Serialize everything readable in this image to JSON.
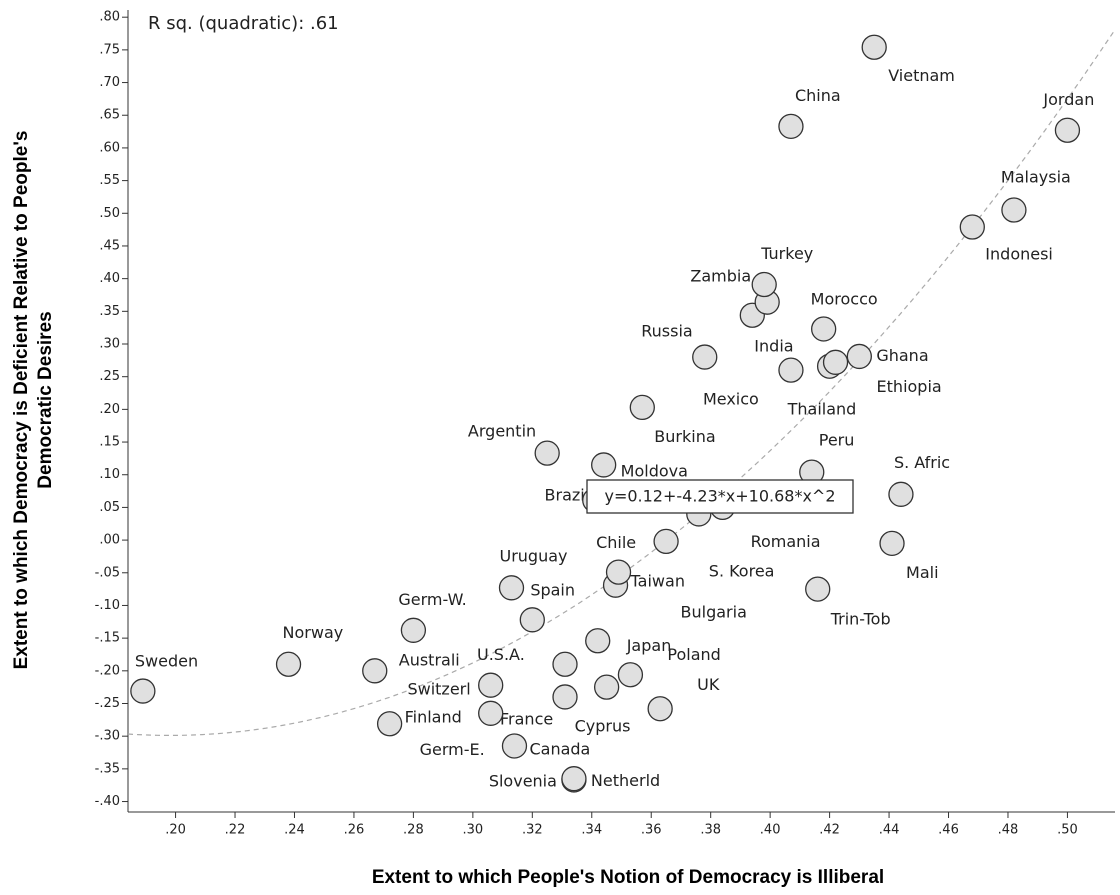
{
  "chart_data": {
    "type": "scatter",
    "annotation": "R sq. (quadratic):  .61",
    "xlabel": "Extent to which People's Notion of Democracy is Illiberal",
    "ylabel": [
      "Extent to which Democracy is Deficient Relative to People's",
      "Democratic Desires"
    ],
    "fit_label": "y=0.12+-4.23*x+10.68*x^2",
    "fit_coefficients": [
      0.12,
      -4.23,
      10.68
    ],
    "fit_color": "#aaaaaa",
    "color": "#e0e0e0",
    "xlim": [
      0.184,
      0.516
    ],
    "ylim": [
      -0.416,
      0.811
    ],
    "xticks": [
      {
        "value": 0.2,
        "label": ".20"
      },
      {
        "value": 0.22,
        "label": ".22"
      },
      {
        "value": 0.24,
        "label": ".24"
      },
      {
        "value": 0.26,
        "label": ".26"
      },
      {
        "value": 0.28,
        "label": ".28"
      },
      {
        "value": 0.3,
        "label": ".30"
      },
      {
        "value": 0.32,
        "label": ".32"
      },
      {
        "value": 0.34,
        "label": ".34"
      },
      {
        "value": 0.36,
        "label": ".36"
      },
      {
        "value": 0.38,
        "label": ".38"
      },
      {
        "value": 0.4,
        "label": ".40"
      },
      {
        "value": 0.42,
        "label": ".42"
      },
      {
        "value": 0.44,
        "label": ".44"
      },
      {
        "value": 0.46,
        "label": ".46"
      },
      {
        "value": 0.48,
        "label": ".48"
      },
      {
        "value": 0.5,
        "label": ".50"
      }
    ],
    "yticks": [
      {
        "value": 0.8,
        "label": ".80"
      },
      {
        "value": 0.75,
        "label": ".75"
      },
      {
        "value": 0.7,
        "label": ".70"
      },
      {
        "value": 0.65,
        "label": ".65"
      },
      {
        "value": 0.6,
        "label": ".60"
      },
      {
        "value": 0.55,
        "label": ".55"
      },
      {
        "value": 0.5,
        "label": ".50"
      },
      {
        "value": 0.45,
        "label": ".45"
      },
      {
        "value": 0.4,
        "label": ".40"
      },
      {
        "value": 0.35,
        "label": ".35"
      },
      {
        "value": 0.3,
        "label": ".30"
      },
      {
        "value": 0.25,
        "label": ".25"
      },
      {
        "value": 0.2,
        "label": ".20"
      },
      {
        "value": 0.15,
        "label": ".15"
      },
      {
        "value": 0.1,
        "label": ".10"
      },
      {
        "value": 0.05,
        "label": ".05"
      },
      {
        "value": 0,
        "label": ".00"
      },
      {
        "value": -0.05,
        "label": "-.05"
      },
      {
        "value": -0.1,
        "label": "-.10"
      },
      {
        "value": -0.15,
        "label": "-.15"
      },
      {
        "value": -0.2,
        "label": "-.20"
      },
      {
        "value": -0.25,
        "label": "-.25"
      },
      {
        "value": -0.3,
        "label": "-.30"
      },
      {
        "value": -0.35,
        "label": "-.35"
      },
      {
        "value": -0.4,
        "label": "-.40"
      }
    ],
    "point_labels": [
      "Sweden",
      "Norway",
      "Australi",
      "Germ-W.",
      "Finland",
      "Switzerl",
      "Germ-E.",
      "Canada",
      "France",
      "Cyprus",
      "U.S.A.",
      "Slovenia",
      "Netherld",
      "Japan",
      "Poland",
      "UK",
      "Uruguay",
      "Spain",
      "Chile",
      "Taiwan",
      "Brazi",
      "Romania",
      "S. Korea",
      "Bulgaria",
      "Moldova",
      "Argentin",
      "Burkina",
      "Russia",
      "India",
      "Zambia",
      "Turkey",
      "Morocco",
      "Mexico",
      "Thailand",
      "Ethiopia",
      "Ghana",
      "Peru",
      "China",
      "Vietnam",
      "Jordan",
      "Malaysia",
      "Indonesi",
      "S. Afric",
      "Mali",
      "Trin-Tob"
    ],
    "x": [
      0.189,
      0.238,
      0.267,
      0.28,
      0.272,
      0.306,
      0.306,
      0.314,
      0.331,
      0.345,
      0.331,
      0.334,
      0.334,
      0.342,
      0.353,
      0.363,
      0.313,
      0.32,
      0.365,
      0.348,
      0.341,
      0.384,
      0.376,
      0.349,
      0.344,
      0.325,
      0.357,
      0.378,
      0.394,
      0.399,
      0.398,
      0.418,
      0.407,
      0.42,
      0.422,
      0.43,
      0.414,
      0.407,
      0.435,
      0.5,
      0.482,
      0.468,
      0.444,
      0.441,
      0.416
    ],
    "values": [
      -0.231,
      -0.19,
      -0.2,
      -0.138,
      -0.281,
      -0.222,
      -0.265,
      -0.315,
      -0.24,
      -0.225,
      -0.19,
      -0.367,
      -0.365,
      -0.154,
      -0.206,
      -0.258,
      -0.073,
      -0.122,
      -0.002,
      -0.069,
      0.061,
      0.05,
      0.04,
      -0.049,
      0.115,
      0.133,
      0.203,
      0.28,
      0.344,
      0.364,
      0.391,
      0.323,
      0.26,
      0.266,
      0.272,
      0.281,
      0.104,
      0.633,
      0.754,
      0.627,
      0.505,
      0.479,
      0.07,
      -0.005,
      -0.075
    ]
  }
}
